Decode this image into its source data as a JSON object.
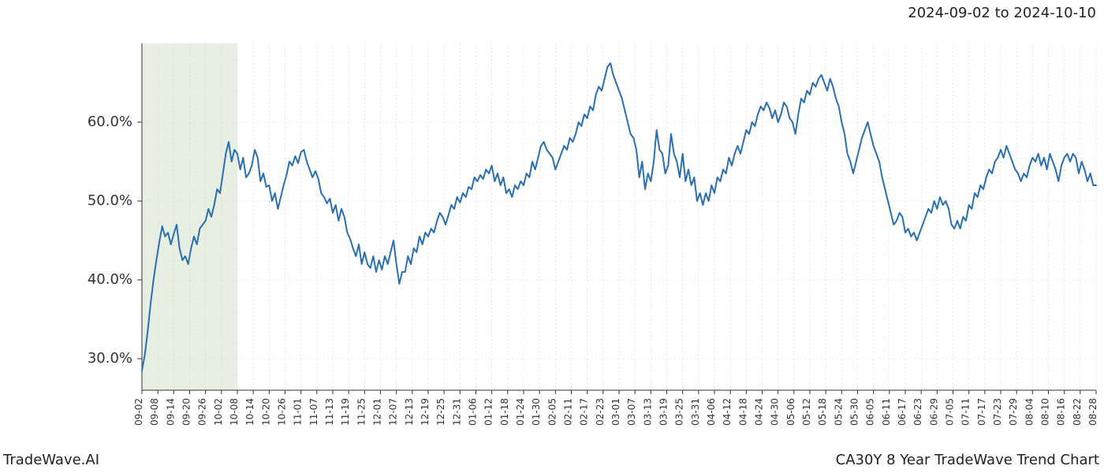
{
  "header": {
    "date_range": "2024-09-02 to 2024-10-10"
  },
  "footer": {
    "brand": "TradeWave.AI",
    "chart_title": "CA30Y 8 Year TradeWave Trend Chart"
  },
  "chart": {
    "type": "line",
    "background_color": "#ffffff",
    "grid_color": "#d7d7d7",
    "axis_color": "#333333",
    "line_color": "#2a6fb0",
    "line_width": 2,
    "highlight": {
      "color": "#dce8d5",
      "opacity": 0.7,
      "x_start_index": 0,
      "x_end_index": 6
    },
    "y_axis": {
      "min": 26,
      "max": 70,
      "ticks": [
        30,
        40,
        50,
        60
      ],
      "tick_labels": [
        "30.0%",
        "40.0%",
        "50.0%",
        "60.0%"
      ],
      "label_fontsize": 18
    },
    "x_axis": {
      "labels": [
        "09-02",
        "09-08",
        "09-14",
        "09-20",
        "09-26",
        "10-02",
        "10-08",
        "10-14",
        "10-20",
        "10-26",
        "11-01",
        "11-07",
        "11-13",
        "11-19",
        "11-25",
        "12-01",
        "12-07",
        "12-13",
        "12-19",
        "12-25",
        "12-31",
        "01-06",
        "01-12",
        "01-18",
        "01-24",
        "01-30",
        "02-05",
        "02-11",
        "02-17",
        "02-23",
        "03-01",
        "03-07",
        "03-13",
        "03-19",
        "03-25",
        "03-31",
        "04-06",
        "04-12",
        "04-18",
        "04-24",
        "04-30",
        "05-06",
        "05-12",
        "05-18",
        "05-24",
        "05-30",
        "06-05",
        "06-11",
        "06-17",
        "06-23",
        "06-29",
        "07-05",
        "07-11",
        "07-17",
        "07-23",
        "07-29",
        "08-04",
        "08-10",
        "08-16",
        "08-22",
        "08-28"
      ],
      "label_fontsize": 12,
      "rotation": -90
    },
    "series": {
      "name": "CA30Y",
      "values": [
        28.5,
        30.5,
        33.5,
        37.0,
        40.0,
        42.5,
        44.8,
        46.8,
        45.5,
        46.0,
        44.5,
        45.8,
        47.0,
        44.0,
        42.5,
        43.0,
        42.0,
        44.0,
        45.5,
        44.5,
        46.5,
        47.0,
        47.5,
        49.0,
        48.0,
        49.5,
        51.5,
        51.0,
        53.5,
        56.0,
        57.5,
        55.0,
        56.5,
        56.0,
        54.0,
        55.5,
        53.0,
        53.5,
        54.5,
        56.5,
        55.5,
        52.5,
        53.5,
        51.8,
        52.0,
        50.0,
        51.0,
        49.0,
        50.5,
        52.0,
        53.3,
        55.0,
        54.5,
        55.7,
        54.8,
        56.2,
        56.5,
        55.0,
        54.0,
        53.0,
        53.8,
        52.8,
        51.0,
        50.5,
        49.7,
        50.3,
        48.5,
        49.5,
        47.5,
        49.0,
        48.0,
        46.0,
        45.2,
        44.0,
        43.0,
        44.5,
        42.0,
        43.5,
        42.0,
        41.5,
        43.0,
        41.0,
        42.5,
        41.3,
        43.0,
        42.0,
        43.5,
        45.0,
        42.0,
        39.5,
        41.0,
        41.0,
        43.0,
        42.0,
        44.0,
        43.5,
        45.5,
        44.5,
        46.0,
        45.5,
        46.5,
        46.0,
        47.4,
        48.5,
        48.0,
        47.0,
        48.2,
        49.5,
        49.0,
        50.5,
        49.8,
        51.0,
        50.5,
        51.8,
        51.5,
        53.0,
        52.5,
        53.3,
        52.8,
        54.0,
        53.5,
        54.5,
        52.5,
        53.5,
        52.0,
        53.0,
        51.0,
        51.5,
        50.5,
        52.0,
        51.5,
        52.5,
        52.0,
        53.5,
        53.0,
        55.0,
        54.0,
        55.5,
        57.0,
        57.5,
        56.5,
        56.0,
        55.5,
        54.0,
        55.0,
        56.0,
        57.0,
        56.5,
        58.0,
        57.5,
        58.5,
        60.0,
        59.5,
        61.0,
        60.5,
        62.0,
        61.5,
        63.5,
        64.5,
        64.0,
        65.5,
        67.0,
        67.5,
        66.0,
        65.0,
        64.0,
        63.0,
        61.5,
        60.0,
        58.5,
        58.0,
        56.5,
        53.0,
        55.0,
        51.5,
        53.5,
        52.5,
        55.0,
        59.0,
        56.5,
        56.0,
        53.5,
        54.5,
        58.5,
        56.0,
        55.0,
        53.0,
        56.0,
        52.5,
        54.0,
        52.0,
        53.0,
        50.0,
        51.0,
        49.5,
        51.0,
        50.0,
        52.0,
        51.0,
        53.0,
        52.5,
        54.0,
        53.5,
        55.5,
        54.5,
        56.0,
        57.0,
        56.0,
        57.5,
        59.0,
        58.5,
        60.0,
        59.5,
        61.0,
        62.0,
        61.5,
        62.5,
        61.8,
        60.5,
        61.5,
        60.0,
        61.0,
        62.5,
        62.0,
        60.5,
        60.0,
        58.5,
        61.0,
        63.0,
        62.5,
        64.0,
        63.5,
        65.0,
        64.5,
        65.5,
        66.0,
        65.0,
        64.0,
        65.5,
        64.5,
        63.0,
        62.0,
        60.0,
        58.5,
        56.0,
        55.0,
        53.5,
        55.0,
        56.5,
        58.0,
        59.0,
        60.0,
        58.5,
        57.0,
        56.0,
        55.0,
        53.0,
        51.5,
        50.0,
        48.5,
        47.0,
        47.5,
        48.5,
        48.0,
        46.0,
        46.5,
        45.5,
        46.0,
        45.0,
        46.0,
        47.0,
        48.0,
        49.0,
        48.5,
        50.0,
        49.0,
        50.5,
        49.5,
        50.0,
        49.0,
        47.0,
        46.5,
        47.5,
        46.5,
        48.0,
        47.5,
        49.5,
        49.0,
        51.0,
        50.5,
        52.0,
        51.5,
        53.0,
        54.0,
        53.5,
        55.0,
        55.5,
        56.5,
        55.5,
        57.0,
        56.0,
        55.0,
        54.0,
        53.5,
        52.5,
        53.5,
        53.0,
        54.5,
        55.5,
        55.0,
        56.0,
        54.5,
        55.5,
        54.0,
        56.0,
        55.0,
        54.0,
        52.5,
        54.5,
        55.5,
        56.0,
        55.0,
        56.0,
        55.5,
        53.5,
        55.0,
        54.0,
        52.5,
        53.5,
        52.0,
        52.0
      ]
    }
  }
}
